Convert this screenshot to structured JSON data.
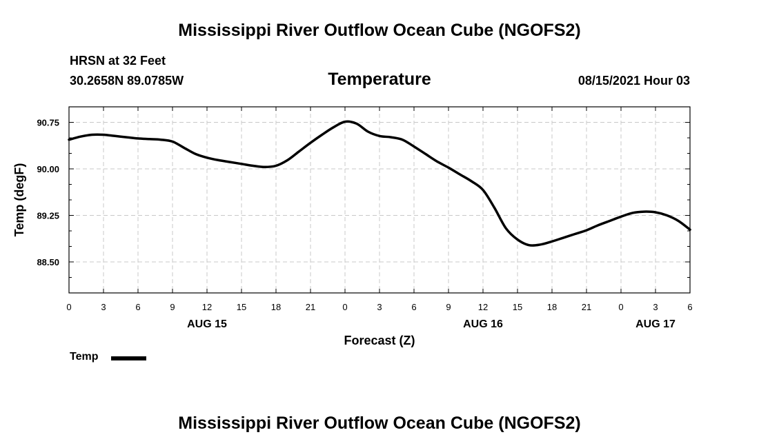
{
  "header": {
    "title": "Mississippi River Outflow Ocean Cube (NGOFS2)",
    "station": "HRSN at 32 Feet",
    "coordinates": "30.2658N  89.0785W",
    "variable": "Temperature",
    "datetime": "08/15/2021 Hour 03"
  },
  "legend": {
    "label": "Temp",
    "color": "#000000"
  },
  "footer": {
    "title": "Mississippi River Outflow Ocean Cube (NGOFS2)"
  },
  "chart_data": {
    "type": "line",
    "title": "Temperature",
    "xlabel": "Forecast (Z)",
    "ylabel": "Temp (degF)",
    "xlim": [
      0,
      54
    ],
    "ylim": [
      88.0,
      91.0
    ],
    "yticks": [
      90.75,
      90.0,
      89.25,
      88.5
    ],
    "ytick_labels": [
      "90.75",
      "90.00",
      "89.25",
      "88.50"
    ],
    "ytick_minor_step": 0.25,
    "xticks": [
      0,
      3,
      6,
      9,
      12,
      15,
      18,
      21,
      24,
      27,
      30,
      33,
      36,
      39,
      42,
      45,
      48,
      51,
      54
    ],
    "xtick_labels": [
      "0",
      "3",
      "6",
      "9",
      "12",
      "15",
      "18",
      "21",
      "0",
      "3",
      "6",
      "9",
      "12",
      "15",
      "18",
      "21",
      "0",
      "3",
      "6"
    ],
    "day_labels": [
      {
        "x": 12,
        "label": "AUG 15"
      },
      {
        "x": 36,
        "label": "AUG 16"
      },
      {
        "x": 51,
        "label": "AUG 17"
      }
    ],
    "grid": true,
    "series": [
      {
        "name": "Temp",
        "color": "#000000",
        "x": [
          0,
          1,
          2,
          3,
          4,
          5,
          6,
          7,
          8,
          9,
          10,
          11,
          12,
          13,
          14,
          15,
          16,
          17,
          18,
          19,
          20,
          21,
          22,
          23,
          24,
          25,
          26,
          27,
          28,
          29,
          30,
          31,
          32,
          33,
          34,
          35,
          36,
          37,
          38,
          39,
          40,
          41,
          42,
          43,
          44,
          45,
          46,
          47,
          48,
          49,
          50,
          51,
          52,
          53,
          54
        ],
        "values": [
          90.47,
          90.52,
          90.55,
          90.55,
          90.53,
          90.51,
          90.49,
          90.48,
          90.47,
          90.44,
          90.34,
          90.24,
          90.18,
          90.14,
          90.11,
          90.08,
          90.05,
          90.03,
          90.05,
          90.14,
          90.28,
          90.42,
          90.55,
          90.67,
          90.76,
          90.73,
          90.6,
          90.53,
          90.51,
          90.47,
          90.36,
          90.24,
          90.12,
          90.02,
          89.91,
          89.8,
          89.66,
          89.37,
          89.04,
          88.86,
          88.77,
          88.78,
          88.83,
          88.89,
          88.95,
          89.01,
          89.09,
          89.16,
          89.23,
          89.29,
          89.31,
          89.3,
          89.25,
          89.16,
          89.02
        ]
      }
    ]
  }
}
